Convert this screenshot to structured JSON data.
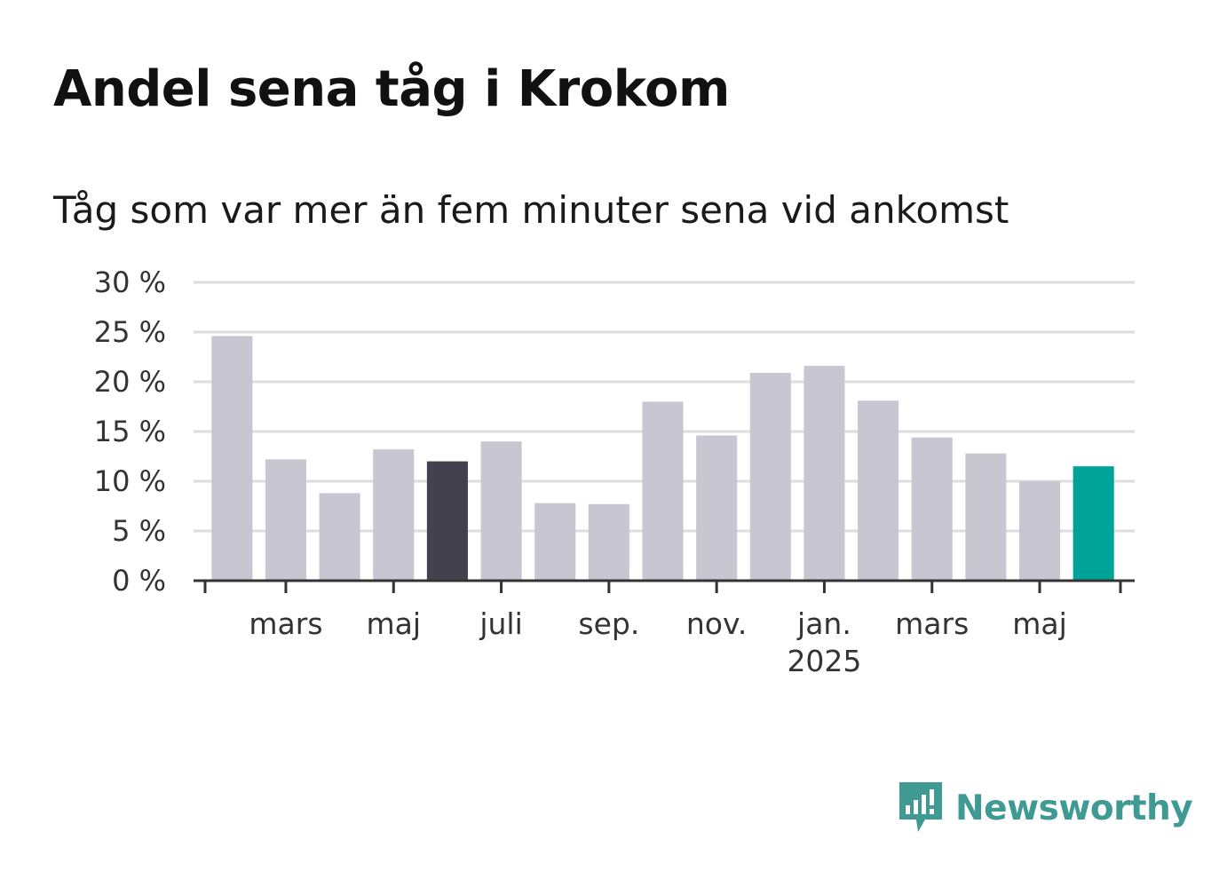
{
  "chart_data": {
    "type": "bar",
    "title": "Andel sena tåg i Krokom",
    "subtitle": "Tåg som var mer än fem minuter sena vid ankomst",
    "xlabel": "",
    "ylabel": "",
    "ylim": [
      0,
      30
    ],
    "yticks": [
      0,
      5,
      10,
      15,
      20,
      25,
      30
    ],
    "ytick_suffix": " %",
    "grid": true,
    "categories": [
      "2024-02",
      "2024-03",
      "2024-04",
      "2024-05",
      "2024-06",
      "2024-07",
      "2024-08",
      "2024-09",
      "2024-10",
      "2024-11",
      "2024-12",
      "2025-01",
      "2025-02",
      "2025-03",
      "2025-04",
      "2025-05",
      "2025-06"
    ],
    "values": [
      24.6,
      12.2,
      8.8,
      13.2,
      12.0,
      14.0,
      7.8,
      7.7,
      18.0,
      14.6,
      20.9,
      21.6,
      18.1,
      14.4,
      12.8,
      10.0,
      11.5
    ],
    "x_tick_labels": [
      {
        "label": "mars",
        "category": "2024-03",
        "year": ""
      },
      {
        "label": "maj",
        "category": "2024-05",
        "year": ""
      },
      {
        "label": "juli",
        "category": "2024-07",
        "year": ""
      },
      {
        "label": "sep.",
        "category": "2024-09",
        "year": ""
      },
      {
        "label": "nov.",
        "category": "2024-11",
        "year": ""
      },
      {
        "label": "jan.",
        "category": "2025-01",
        "year": "2025"
      },
      {
        "label": "mars",
        "category": "2025-03",
        "year": ""
      },
      {
        "label": "maj",
        "category": "2025-05",
        "year": ""
      }
    ],
    "colors": {
      "default": "#c8c7d1",
      "highlight_previous_year": "#42414d",
      "highlight_latest": "#00a398",
      "grid": "#dddddd",
      "axis": "#333333"
    },
    "highlight": {
      "2024-06": "highlight_previous_year",
      "2025-06": "highlight_latest"
    }
  },
  "branding": {
    "logo_text": "Newsworthy",
    "logo_icon": "bar-chart-speech-bubble-icon",
    "logo_color": "#3f9a93"
  }
}
